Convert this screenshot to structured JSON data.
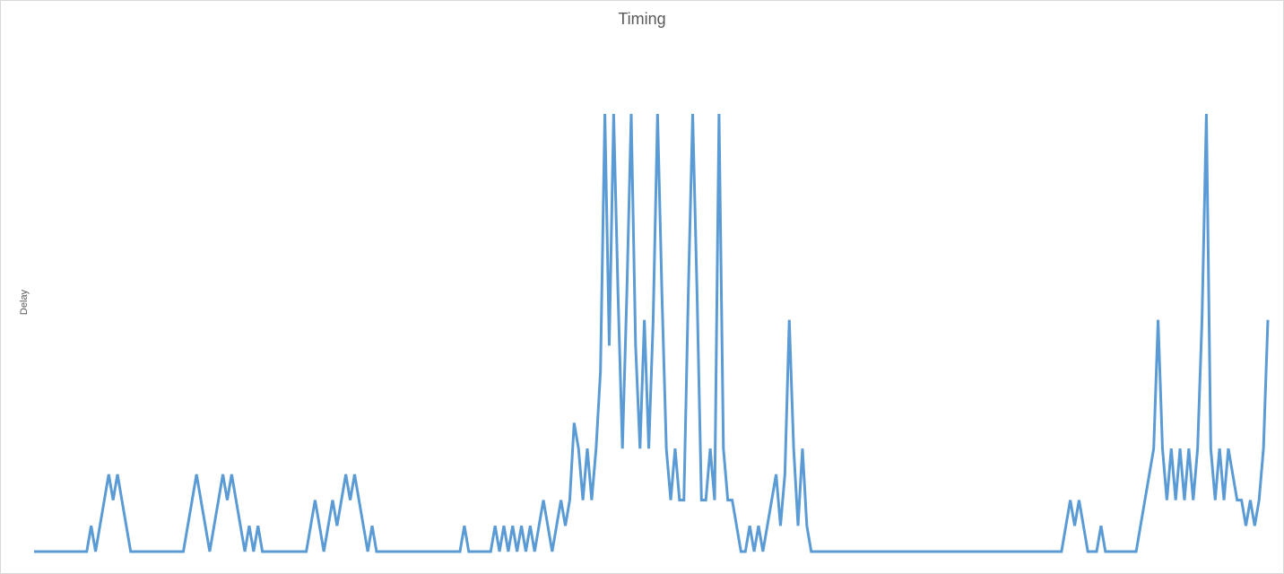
{
  "chart_data": {
    "type": "line",
    "title": "Timing",
    "xlabel": "",
    "ylabel": "Delay",
    "ylim": [
      0,
      17
    ],
    "grid": false,
    "legend": "none",
    "series": [
      {
        "color": "#5b9bd5",
        "values": [
          0,
          0,
          0,
          0,
          0,
          0,
          0,
          0,
          0,
          0,
          0,
          0,
          0,
          1,
          0,
          1,
          2,
          3,
          2,
          3,
          2,
          1,
          0,
          0,
          0,
          0,
          0,
          0,
          0,
          0,
          0,
          0,
          0,
          0,
          0,
          1,
          2,
          3,
          2,
          1,
          0,
          1,
          2,
          3,
          2,
          3,
          2,
          1,
          0,
          1,
          0,
          1,
          0,
          0,
          0,
          0,
          0,
          0,
          0,
          0,
          0,
          0,
          0,
          1,
          2,
          1,
          0,
          1,
          2,
          1,
          2,
          3,
          2,
          3,
          2,
          1,
          0,
          1,
          0,
          0,
          0,
          0,
          0,
          0,
          0,
          0,
          0,
          0,
          0,
          0,
          0,
          0,
          0,
          0,
          0,
          0,
          0,
          0,
          1,
          0,
          0,
          0,
          0,
          0,
          0,
          1,
          0,
          1,
          0,
          1,
          0,
          1,
          0,
          1,
          0,
          1,
          2,
          1,
          0,
          1,
          2,
          1,
          2,
          5,
          4,
          2,
          4,
          2,
          4,
          7,
          17,
          8,
          17,
          10,
          4,
          10,
          17,
          8,
          4,
          9,
          4,
          9,
          17,
          10,
          4,
          2,
          4,
          2,
          2,
          10,
          17,
          10,
          2,
          2,
          4,
          2,
          17,
          4,
          2,
          2,
          1,
          0,
          0,
          1,
          0,
          1,
          0,
          1,
          2,
          3,
          1,
          3,
          9,
          4,
          1,
          4,
          1,
          0,
          0,
          0,
          0,
          0,
          0,
          0,
          0,
          0,
          0,
          0,
          0,
          0,
          0,
          0,
          0,
          0,
          0,
          0,
          0,
          0,
          0,
          0,
          0,
          0,
          0,
          0,
          0,
          0,
          0,
          0,
          0,
          0,
          0,
          0,
          0,
          0,
          0,
          0,
          0,
          0,
          0,
          0,
          0,
          0,
          0,
          0,
          0,
          0,
          0,
          0,
          0,
          0,
          0,
          0,
          0,
          0,
          0,
          1,
          2,
          1,
          2,
          1,
          0,
          0,
          0,
          1,
          0,
          0,
          0,
          0,
          0,
          0,
          0,
          0,
          1,
          2,
          3,
          4,
          9,
          4,
          2,
          4,
          2,
          4,
          2,
          4,
          2,
          4,
          9,
          17,
          4,
          2,
          4,
          2,
          4,
          3,
          2,
          2,
          1,
          2,
          1,
          2,
          4,
          9
        ]
      }
    ]
  }
}
